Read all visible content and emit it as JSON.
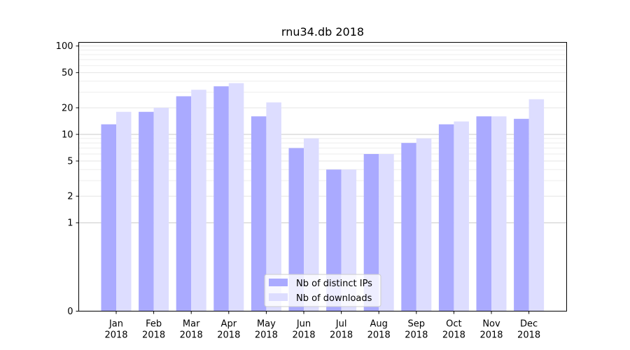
{
  "chart_data": {
    "type": "bar",
    "title": "rnu34.db 2018",
    "xlabel": "",
    "ylabel": "",
    "yscale": "symlog",
    "ylim": [
      0,
      110
    ],
    "y_ticks": [
      0,
      1,
      2,
      5,
      10,
      20,
      50,
      100
    ],
    "y_tick_labels": [
      "0",
      "1",
      "2",
      "5",
      "10",
      "20",
      "50",
      "100"
    ],
    "categories": [
      "Jan",
      "Feb",
      "Mar",
      "Apr",
      "May",
      "Jun",
      "Jul",
      "Aug",
      "Sep",
      "Oct",
      "Nov",
      "Dec"
    ],
    "category_year": "2018",
    "series": [
      {
        "name": "Nb of distinct IPs",
        "color": "#aaaaff",
        "values": [
          13,
          18,
          27,
          35,
          16,
          7,
          4,
          6,
          8,
          13,
          16,
          15
        ]
      },
      {
        "name": "Nb of downloads",
        "color": "#ddddff",
        "values": [
          18,
          20,
          32,
          38,
          23,
          9,
          4,
          6,
          9,
          14,
          16,
          25
        ]
      }
    ],
    "grid": true,
    "legend_position": "bottom-center"
  }
}
